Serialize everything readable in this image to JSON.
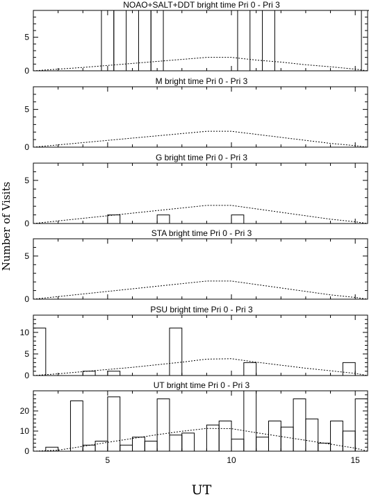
{
  "figure": {
    "xlabel": "UT",
    "ylabel": "Number of Visits"
  },
  "chart_data": [
    {
      "type": "bar",
      "title": "NOAO+SALT+DDT    bright time Pri 0 - Pri 3",
      "xlim": [
        2,
        15.5
      ],
      "ylim": [
        0,
        9
      ],
      "yticks": [
        0,
        5
      ],
      "xticks": [
        5,
        10,
        15
      ],
      "show_xticklabels": false,
      "bin_width": 0.5,
      "bins": [
        [
          4.75,
          9
        ],
        [
          5.25,
          9
        ],
        [
          6.25,
          9
        ],
        [
          6.75,
          9
        ],
        [
          10.25,
          9
        ],
        [
          11.25,
          9
        ],
        [
          15.25,
          9
        ]
      ],
      "curve": {
        "x": [
          2,
          3,
          4,
          5,
          6,
          7,
          8,
          9,
          10,
          11,
          12,
          13,
          14,
          15,
          15.5
        ],
        "y": [
          0,
          0.25,
          0.5,
          0.8,
          1.1,
          1.4,
          1.7,
          2.0,
          2.0,
          1.6,
          1.3,
          0.9,
          0.6,
          0.25,
          0
        ]
      }
    },
    {
      "type": "bar",
      "title": "M    bright time Pri 0 - Pri 3",
      "xlim": [
        2,
        15.5
      ],
      "ylim": [
        0,
        8
      ],
      "yticks": [
        0,
        5
      ],
      "xticks": [
        5,
        10,
        15
      ],
      "show_xticklabels": false,
      "bin_width": 0.5,
      "bins": [],
      "curve": {
        "x": [
          2,
          3,
          4,
          5,
          6,
          7,
          8,
          9,
          10,
          11,
          12,
          13,
          14,
          15,
          15.5
        ],
        "y": [
          0,
          0.3,
          0.6,
          0.9,
          1.2,
          1.5,
          1.8,
          2.1,
          2.1,
          1.7,
          1.3,
          0.9,
          0.5,
          0.2,
          0
        ]
      }
    },
    {
      "type": "bar",
      "title": "G    bright time Pri 0 - Pri 3",
      "xlim": [
        2,
        15.5
      ],
      "ylim": [
        0,
        7
      ],
      "yticks": [
        0,
        5
      ],
      "xticks": [
        5,
        10,
        15
      ],
      "show_xticklabels": false,
      "bin_width": 0.5,
      "bins": [
        [
          5,
          1
        ],
        [
          7,
          1
        ],
        [
          10,
          1
        ]
      ],
      "curve": {
        "x": [
          2,
          3,
          4,
          5,
          6,
          7,
          8,
          9,
          10,
          11,
          12,
          13,
          14,
          15,
          15.5
        ],
        "y": [
          0,
          0.3,
          0.6,
          0.9,
          1.2,
          1.5,
          1.8,
          2.1,
          2.1,
          1.7,
          1.3,
          0.9,
          0.5,
          0.2,
          0
        ]
      }
    },
    {
      "type": "bar",
      "title": "STA    bright time Pri 0 - Pri 3",
      "xlim": [
        2,
        15.5
      ],
      "ylim": [
        0,
        7
      ],
      "yticks": [
        0,
        5
      ],
      "xticks": [
        5,
        10,
        15
      ],
      "show_xticklabels": false,
      "bin_width": 0.5,
      "bins": [],
      "curve": {
        "x": [
          2,
          3,
          4,
          5,
          6,
          7,
          8,
          9,
          10,
          11,
          12,
          13,
          14,
          15,
          15.5
        ],
        "y": [
          0,
          0.3,
          0.6,
          0.9,
          1.2,
          1.5,
          1.8,
          2.1,
          2.1,
          1.7,
          1.3,
          0.9,
          0.5,
          0.2,
          0
        ]
      }
    },
    {
      "type": "bar",
      "title": "PSU    bright time Pri 0 - Pri 3",
      "xlim": [
        2,
        15.5
      ],
      "ylim": [
        0,
        14
      ],
      "yticks": [
        0,
        5,
        10
      ],
      "xticks": [
        5,
        10,
        15
      ],
      "show_xticklabels": false,
      "bin_width": 0.5,
      "bins": [
        [
          2,
          11
        ],
        [
          4,
          1
        ],
        [
          5,
          1
        ],
        [
          7.5,
          11
        ],
        [
          10.5,
          3
        ],
        [
          14.5,
          3
        ]
      ],
      "curve": {
        "x": [
          2,
          3,
          4,
          5,
          6,
          7,
          8,
          9,
          10,
          11,
          12,
          13,
          14,
          15,
          15.5
        ],
        "y": [
          0,
          0.4,
          0.9,
          1.4,
          1.9,
          2.5,
          3.1,
          3.8,
          3.9,
          3.1,
          2.4,
          1.7,
          1.1,
          0.5,
          0
        ]
      }
    },
    {
      "type": "bar",
      "title": "UT    bright time Pri 0 - Pri 3",
      "xlim": [
        2,
        15.5
      ],
      "ylim": [
        0,
        30
      ],
      "yticks": [
        0,
        10,
        20
      ],
      "xticks": [
        5,
        10,
        15
      ],
      "show_xticklabels": true,
      "bin_width": 0.5,
      "bins": [
        [
          2.5,
          2
        ],
        [
          3.5,
          25
        ],
        [
          4,
          3
        ],
        [
          4.5,
          5
        ],
        [
          5,
          27
        ],
        [
          5.5,
          3
        ],
        [
          6,
          7
        ],
        [
          6.5,
          5
        ],
        [
          7,
          26
        ],
        [
          7.5,
          8
        ],
        [
          8,
          9
        ],
        [
          9,
          13
        ],
        [
          9.5,
          15
        ],
        [
          10,
          6
        ],
        [
          10.5,
          30
        ],
        [
          11,
          7
        ],
        [
          11.5,
          15
        ],
        [
          12,
          12
        ],
        [
          12.5,
          26
        ],
        [
          13,
          16
        ],
        [
          13.5,
          4
        ],
        [
          14,
          15
        ],
        [
          14.5,
          10
        ],
        [
          15,
          26
        ]
      ],
      "curve": {
        "x": [
          2,
          3,
          4,
          5,
          6,
          7,
          8,
          9,
          10,
          11,
          12,
          13,
          14,
          15,
          15.5
        ],
        "y": [
          0,
          0.5,
          2.4,
          4.4,
          6.3,
          8.2,
          9.9,
          11.3,
          11.2,
          9.2,
          7.3,
          5.4,
          3.5,
          1.5,
          0
        ]
      }
    }
  ]
}
